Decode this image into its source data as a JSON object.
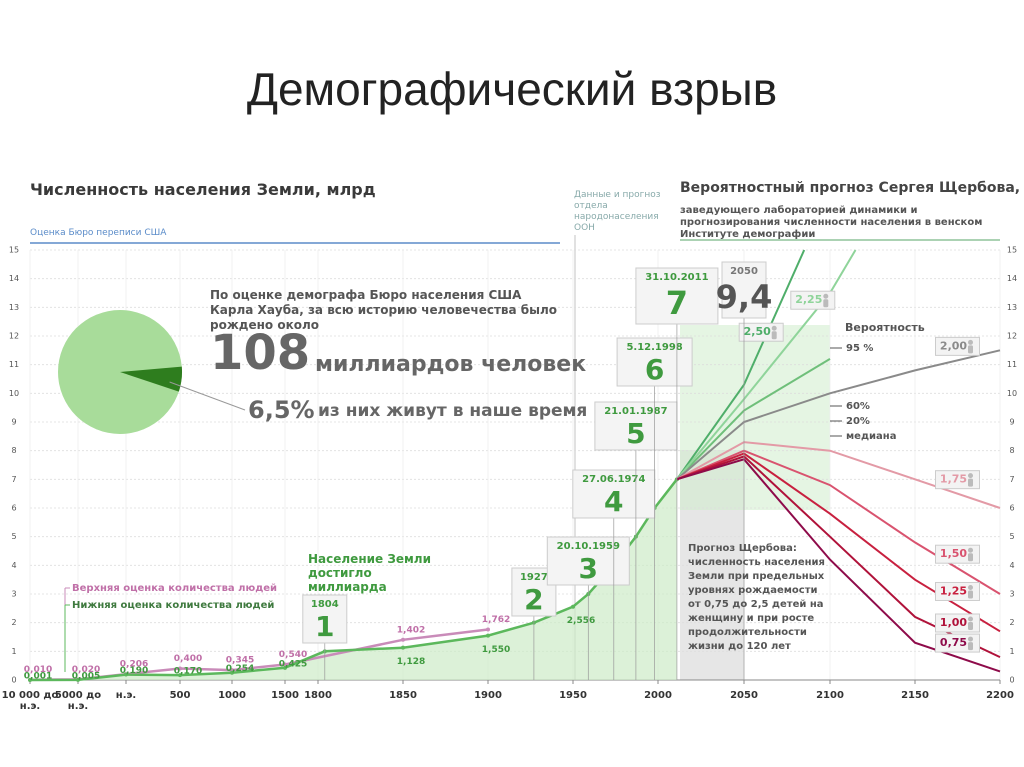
{
  "title": "Демографический взрыв",
  "chart_data": [
    {
      "type": "line",
      "title": "Численность населения Земли, млрд",
      "source_note": "Оценка Бюро переписи США",
      "un_note": "Данные и прогноз отдела народонаселения ООН",
      "forecast_title": "Вероятностный прогноз Сергея Щербова,",
      "forecast_subtitle": "заведующего лабораторией динамики и прогнозирования численности населения в венском Институте демографии",
      "annotation": "Население Земли достигло миллиарда",
      "forecast_note": "Прогноз Щербова: численность населения Земли при предельных уровнях рождаемости от 0,75 до 2,5 детей на женщину и при росте продолжительности жизни до 120 лет",
      "probability": {
        "title": "Вероятность",
        "labels": [
          "95 %",
          "60%",
          "20%",
          "медиана"
        ]
      },
      "xlim": [
        -10000,
        2200
      ],
      "xticks": [
        {
          "value": -10000,
          "label": "10 000 до н.э."
        },
        {
          "value": -5000,
          "label": "5000 до н.э."
        },
        {
          "value": 0,
          "label": "н.э."
        },
        500,
        1000,
        1500,
        1800,
        1850,
        1900,
        1950,
        2000,
        2050,
        2100,
        2150,
        2200
      ],
      "ylim": [
        0,
        15
      ],
      "yticks": [
        0,
        1,
        2,
        3,
        4,
        5,
        6,
        7,
        8,
        9,
        10,
        11,
        12,
        13,
        14,
        15
      ],
      "grid": true,
      "milestones": [
        {
          "date": "1804",
          "value": 1
        },
        {
          "date": "1927",
          "value": 2
        },
        {
          "date": "20.10.1959",
          "value": 3
        },
        {
          "date": "27.06.1974",
          "value": 4
        },
        {
          "date": "21.01.1987",
          "value": 5
        },
        {
          "date": "5.12.1998",
          "value": 6
        },
        {
          "date": "31.10.2011",
          "value": 7
        },
        {
          "date": "2050",
          "value": 9.4,
          "label": "9,4"
        }
      ],
      "series": [
        {
          "name": "Верхняя оценка количества людей",
          "color": "#c98bb9",
          "legend": true,
          "x": [
            -10000,
            -5000,
            0,
            500,
            1000,
            1500,
            1850,
            1900
          ],
          "values": [
            0.01,
            0.02,
            0.206,
            0.4,
            0.345,
            0.54,
            1.402,
            1.762
          ],
          "value_labels": [
            "0,010",
            "0,020",
            "0,206",
            "0,400",
            "0,345",
            "0,540",
            "1,402",
            "1,762"
          ]
        },
        {
          "name": "Нижняя оценка количества людей",
          "color": "#5cb85c",
          "legend": true,
          "x": [
            -10000,
            -5000,
            0,
            500,
            1000,
            1500,
            1804,
            1850,
            1900,
            1927,
            1950,
            1959,
            1974,
            1987,
            1998,
            2011
          ],
          "values": [
            0.001,
            0.005,
            0.19,
            0.17,
            0.254,
            0.425,
            1,
            1.128,
            1.55,
            2,
            2.556,
            3,
            4,
            5,
            6,
            7
          ],
          "value_labels": [
            "0,001",
            "0,005",
            "0,190",
            "0,170",
            "0,254",
            "0,425",
            null,
            "1,128",
            "1,550",
            null,
            "2,556",
            null,
            null,
            null,
            null,
            null
          ]
        },
        {
          "color": "#6fbf7a",
          "x": [
            2011,
            2050,
            2100
          ],
          "values": [
            7,
            9.4,
            11.2
          ]
        },
        {
          "name": "2,50",
          "color": "#4fae6a",
          "x": [
            2011,
            2050,
            2085
          ],
          "values": [
            7,
            10.3,
            15
          ]
        },
        {
          "name": "2,25",
          "color": "#8fd49a",
          "x": [
            2011,
            2050,
            2100,
            2115
          ],
          "values": [
            7,
            9.8,
            13.5,
            15
          ]
        },
        {
          "name": "2,00",
          "color": "#8a8a8a",
          "x": [
            2011,
            2050,
            2100,
            2150,
            2200
          ],
          "values": [
            7,
            9,
            10,
            10.8,
            11.5
          ]
        },
        {
          "name": "1,75",
          "color": "#e39aa6",
          "x": [
            2011,
            2050,
            2100,
            2150,
            2200
          ],
          "values": [
            7,
            8.3,
            8,
            7,
            6
          ]
        },
        {
          "name": "1,50",
          "color": "#d9536f",
          "x": [
            2011,
            2050,
            2100,
            2150,
            2200
          ],
          "values": [
            7,
            8,
            6.8,
            4.8,
            3
          ]
        },
        {
          "name": "1,25",
          "color": "#c8203f",
          "x": [
            2011,
            2050,
            2100,
            2150,
            2200
          ],
          "values": [
            7,
            7.9,
            5.8,
            3.5,
            1.7
          ]
        },
        {
          "name": "1,00",
          "color": "#b0123a",
          "x": [
            2011,
            2050,
            2100,
            2150,
            2200
          ],
          "values": [
            7,
            7.8,
            5,
            2.2,
            0.8
          ]
        },
        {
          "name": "0,75",
          "color": "#8e0b4a",
          "x": [
            2011,
            2050,
            2100,
            2150,
            2200
          ],
          "values": [
            7,
            7.7,
            4.2,
            1.3,
            0.3
          ]
        }
      ]
    },
    {
      "type": "pie",
      "text": "По оценке демографа Бюро населения США Карла Хауба, за всю историю человечества было рождено около",
      "total": 108,
      "total_label": "миллиардов человек",
      "values": [
        6.5
      ],
      "value_labels": [
        "6,5%"
      ],
      "value_caption": "из них живут в наше время",
      "color": "#2e7d1e",
      "rest_color": "#a8dc9a"
    }
  ]
}
